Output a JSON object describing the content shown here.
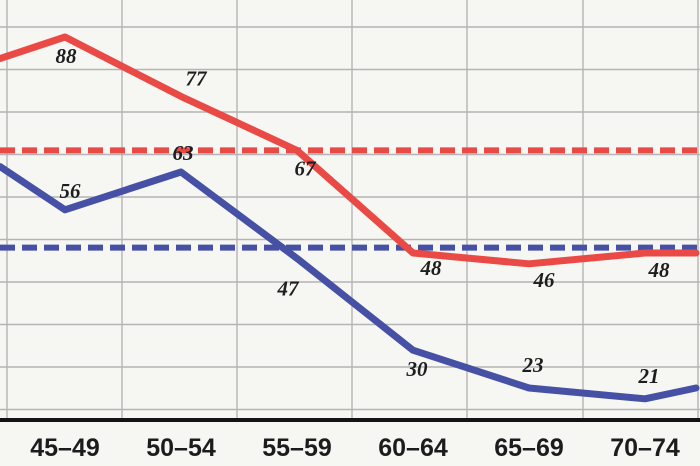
{
  "chart_data": {
    "type": "line",
    "categories": [
      "45–49",
      "50–54",
      "55–59",
      "60–64",
      "65–69",
      "70–74"
    ],
    "series": [
      {
        "color": "#ea4a45",
        "points": [
          {
            "x": 44.2,
            "y": 84,
            "label": null
          },
          {
            "x": 47.0,
            "y": 88,
            "label": "88"
          },
          {
            "x": 52.0,
            "y": 77,
            "label": "77"
          },
          {
            "x": 57.0,
            "y": 67,
            "label": "67"
          },
          {
            "x": 62.0,
            "y": 48,
            "label": "48"
          },
          {
            "x": 67.0,
            "y": 46,
            "label": "46"
          },
          {
            "x": 72.0,
            "y": 48,
            "label": "48"
          },
          {
            "x": 74.2,
            "y": 48,
            "label": null
          }
        ],
        "reference_value": 67
      },
      {
        "color": "#4650a5",
        "points": [
          {
            "x": 44.2,
            "y": 64,
            "label": null
          },
          {
            "x": 47.0,
            "y": 56,
            "label": "56"
          },
          {
            "x": 52.0,
            "y": 63,
            "label": "63"
          },
          {
            "x": 57.0,
            "y": 47,
            "label": "47"
          },
          {
            "x": 62.0,
            "y": 30,
            "label": "30"
          },
          {
            "x": 67.0,
            "y": 23,
            "label": "23"
          },
          {
            "x": 72.0,
            "y": 21,
            "label": "21"
          },
          {
            "x": 74.2,
            "y": 23,
            "label": null
          }
        ],
        "reference_value": 49
      }
    ],
    "grid": true,
    "legend": false
  }
}
